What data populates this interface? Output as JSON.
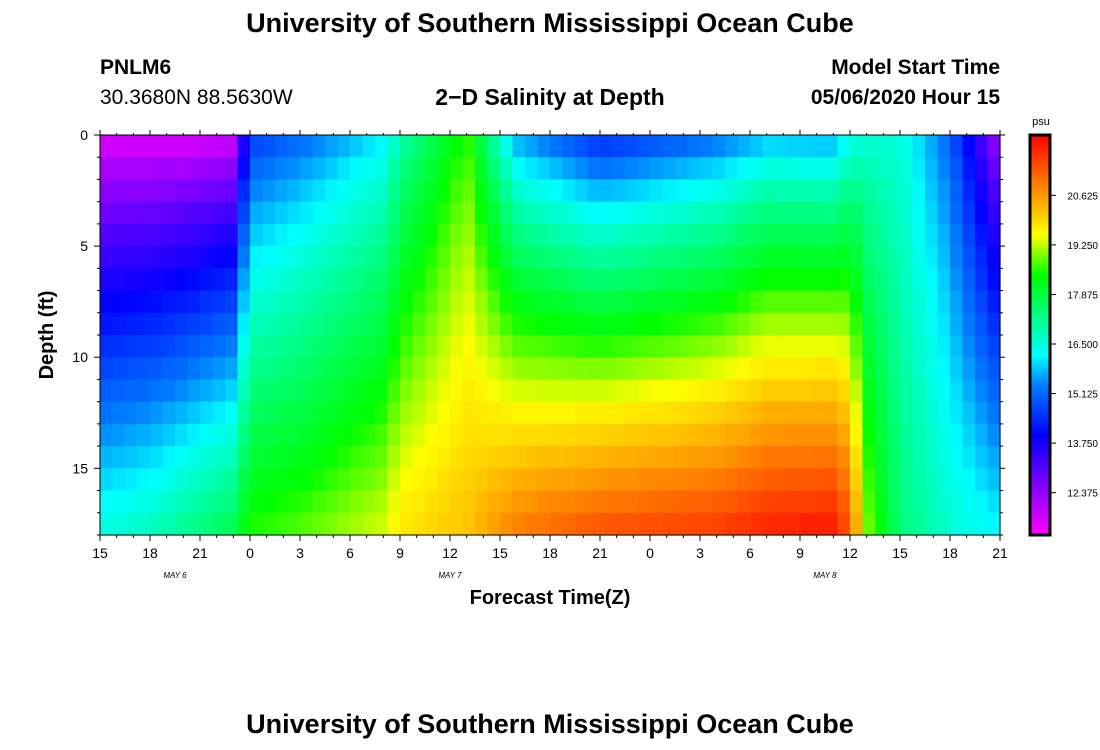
{
  "header": {
    "title": "University of Southern Mississippi Ocean Cube",
    "station_id": "PNLM6",
    "station_coords": "30.3680N 88.5630W",
    "plot_title": "2−D Salinity at Depth",
    "model_start_label": "Model Start Time",
    "model_start_value": "05/06/2020 Hour 15"
  },
  "footer": {
    "title": "University of Southern Mississippi Ocean Cube"
  },
  "chart_data": {
    "type": "heatmap",
    "title": "2−D Salinity at Depth",
    "xlabel": "Forecast Time(Z)",
    "ylabel": "Depth (ft)",
    "x_hours": [
      0,
      54
    ],
    "x_tick_labels": [
      "15",
      "18",
      "21",
      "0",
      "3",
      "6",
      "9",
      "12",
      "15",
      "18",
      "21",
      "0",
      "3",
      "6",
      "9",
      "12",
      "15",
      "18",
      "21"
    ],
    "date_labels": [
      {
        "label": "MAY 6",
        "hour": 4.5
      },
      {
        "label": "MAY 7",
        "hour": 21
      },
      {
        "label": "MAY 8",
        "hour": 43.5
      }
    ],
    "ylim": [
      0,
      18
    ],
    "y_ticks": [
      0,
      5,
      10,
      15
    ],
    "colorbar": {
      "unit": "psu",
      "min": 11.2,
      "max": 22.3,
      "tick_values": [
        12.375,
        13.75,
        15.125,
        16.5,
        17.875,
        19.25,
        20.625
      ],
      "tick_labels": [
        "12.375",
        "13.750",
        "15.125",
        "16.500",
        "17.875",
        "19.250",
        "20.625"
      ]
    },
    "salinity_profiles_psu": [
      {
        "hour": 0,
        "top": 11.4,
        "bottom": 16.5
      },
      {
        "hour": 3,
        "top": 11.4,
        "bottom": 16.8
      },
      {
        "hour": 5,
        "top": 11.4,
        "bottom": 17.2
      },
      {
        "hour": 8,
        "top": 11.6,
        "bottom": 17.8
      },
      {
        "hour": 9,
        "top": 14.5,
        "bottom": 18.6
      },
      {
        "hour": 12,
        "top": 15.0,
        "bottom": 18.8
      },
      {
        "hour": 17,
        "top": 16.0,
        "bottom": 19.4
      },
      {
        "hour": 18,
        "top": 16.8,
        "bottom": 19.8
      },
      {
        "hour": 22,
        "top": 18.6,
        "bottom": 20.2
      },
      {
        "hour": 25,
        "top": 15.5,
        "bottom": 21.0
      },
      {
        "hour": 30,
        "top": 14.2,
        "bottom": 21.5
      },
      {
        "hour": 37,
        "top": 15.0,
        "bottom": 21.7
      },
      {
        "hour": 40,
        "top": 15.6,
        "bottom": 22.0
      },
      {
        "hour": 44,
        "top": 15.5,
        "bottom": 22.1
      },
      {
        "hour": 45,
        "top": 16.2,
        "bottom": 21.4
      },
      {
        "hour": 46,
        "top": 16.5,
        "bottom": 19.0
      },
      {
        "hour": 48,
        "top": 16.5,
        "bottom": 17.4
      },
      {
        "hour": 51,
        "top": 15.0,
        "bottom": 16.6
      },
      {
        "hour": 54,
        "top": 12.0,
        "bottom": 16.2
      }
    ]
  }
}
